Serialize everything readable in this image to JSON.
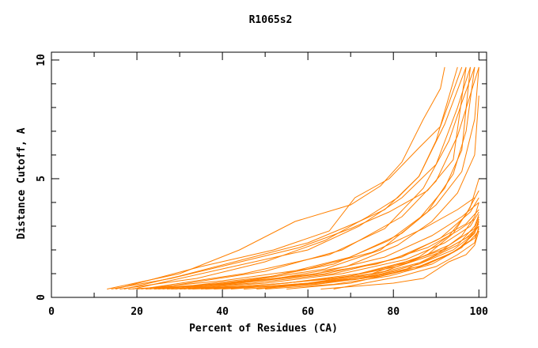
{
  "chart_data": {
    "type": "line",
    "title": "R1065s2",
    "xlabel": "Percent of Residues (CA)",
    "ylabel": "Distance Cutoff, A",
    "xlim": [
      0,
      101.8
    ],
    "ylim": [
      0,
      10.33
    ],
    "x_ticks": [
      0,
      20,
      40,
      60,
      80,
      100
    ],
    "y_ticks": [
      0,
      5,
      10
    ],
    "grid": false,
    "legend": "none",
    "line_color": "#ff8000",
    "series": [
      {
        "points": [
          [
            13,
            0.35
          ],
          [
            30,
            1.0
          ],
          [
            44,
            2.0
          ],
          [
            57,
            3.2
          ],
          [
            70,
            3.9
          ],
          [
            77,
            4.7
          ],
          [
            82,
            5.7
          ],
          [
            87,
            7.5
          ],
          [
            91,
            8.8
          ],
          [
            92,
            9.7
          ]
        ]
      },
      {
        "points": [
          [
            15,
            0.35
          ],
          [
            35,
            1.3
          ],
          [
            52,
            2.0
          ],
          [
            65,
            2.8
          ],
          [
            71,
            4.2
          ],
          [
            79,
            5.0
          ],
          [
            86,
            6.3
          ],
          [
            91,
            7.2
          ],
          [
            96,
            9.7
          ]
        ]
      },
      {
        "points": [
          [
            17,
            0.35
          ],
          [
            30,
            0.9
          ],
          [
            45,
            1.6
          ],
          [
            60,
            2.3
          ],
          [
            72,
            3.2
          ],
          [
            78,
            3.7
          ],
          [
            86,
            5.1
          ],
          [
            92,
            7.3
          ],
          [
            97,
            9.7
          ]
        ]
      },
      {
        "points": [
          [
            19,
            0.35
          ],
          [
            40,
            1.2
          ],
          [
            60,
            2.0
          ],
          [
            72,
            3.0
          ],
          [
            82,
            4.2
          ],
          [
            90,
            5.6
          ],
          [
            95,
            8.0
          ],
          [
            98,
            9.7
          ]
        ]
      },
      {
        "points": [
          [
            21,
            0.35
          ],
          [
            45,
            1.0
          ],
          [
            65,
            1.8
          ],
          [
            78,
            2.9
          ],
          [
            87,
            4.6
          ],
          [
            93,
            6.6
          ],
          [
            96,
            8.2
          ],
          [
            99,
            9.7
          ]
        ]
      },
      {
        "points": [
          [
            23,
            0.35
          ],
          [
            50,
            1.1
          ],
          [
            68,
            2.0
          ],
          [
            82,
            3.4
          ],
          [
            90,
            4.9
          ],
          [
            95,
            6.8
          ],
          [
            100,
            9.7
          ]
        ]
      },
      {
        "points": [
          [
            14,
            0.35
          ],
          [
            28,
            0.8
          ],
          [
            42,
            1.4
          ],
          [
            58,
            2.1
          ],
          [
            70,
            2.9
          ],
          [
            79,
            3.6
          ],
          [
            88,
            4.5
          ],
          [
            94,
            5.8
          ],
          [
            97,
            9.7
          ]
        ]
      },
      {
        "points": [
          [
            26,
            0.35
          ],
          [
            52,
            0.9
          ],
          [
            70,
            1.7
          ],
          [
            82,
            2.7
          ],
          [
            90,
            3.9
          ],
          [
            96,
            5.3
          ],
          [
            99,
            7.5
          ],
          [
            100,
            9.7
          ]
        ]
      },
      {
        "points": [
          [
            20,
            0.35
          ],
          [
            40,
            0.7
          ],
          [
            60,
            1.2
          ],
          [
            75,
            1.9
          ],
          [
            87,
            2.9
          ],
          [
            95,
            3.7
          ],
          [
            99,
            4.2
          ]
        ]
      },
      {
        "points": [
          [
            22,
            0.35
          ],
          [
            42,
            0.6
          ],
          [
            62,
            1.0
          ],
          [
            78,
            1.7
          ],
          [
            89,
            2.6
          ],
          [
            96,
            3.4
          ],
          [
            100,
            4.0
          ]
        ]
      },
      {
        "points": [
          [
            24,
            0.35
          ],
          [
            44,
            0.6
          ],
          [
            64,
            1.0
          ],
          [
            80,
            1.6
          ],
          [
            90,
            2.4
          ],
          [
            97,
            3.1
          ],
          [
            100,
            3.7
          ]
        ]
      },
      {
        "points": [
          [
            27,
            0.35
          ],
          [
            47,
            0.6
          ],
          [
            66,
            1.0
          ],
          [
            82,
            1.7
          ],
          [
            91,
            2.5
          ],
          [
            98,
            3.6
          ],
          [
            100,
            4.2
          ]
        ]
      },
      {
        "points": [
          [
            30,
            0.35
          ],
          [
            50,
            0.6
          ],
          [
            68,
            1.0
          ],
          [
            83,
            1.6
          ],
          [
            92,
            2.3
          ],
          [
            98,
            3.0
          ],
          [
            100,
            3.6
          ]
        ]
      },
      {
        "points": [
          [
            18,
            0.35
          ],
          [
            38,
            0.55
          ],
          [
            58,
            0.9
          ],
          [
            76,
            1.4
          ],
          [
            88,
            2.1
          ],
          [
            95,
            2.8
          ],
          [
            99,
            3.3
          ]
        ]
      },
      {
        "points": [
          [
            32,
            0.35
          ],
          [
            52,
            0.55
          ],
          [
            70,
            0.9
          ],
          [
            84,
            1.5
          ],
          [
            93,
            2.2
          ],
          [
            99,
            2.9
          ],
          [
            100,
            3.4
          ]
        ]
      },
      {
        "points": [
          [
            35,
            0.35
          ],
          [
            55,
            0.6
          ],
          [
            72,
            1.0
          ],
          [
            85,
            1.6
          ],
          [
            93,
            2.1
          ],
          [
            98,
            2.6
          ],
          [
            100,
            3.1
          ]
        ]
      },
      {
        "points": [
          [
            28,
            0.35
          ],
          [
            48,
            0.5
          ],
          [
            67,
            0.8
          ],
          [
            81,
            1.3
          ],
          [
            91,
            1.9
          ],
          [
            97,
            2.5
          ],
          [
            100,
            3.0
          ]
        ]
      },
      {
        "points": [
          [
            38,
            0.35
          ],
          [
            56,
            0.5
          ],
          [
            73,
            0.8
          ],
          [
            86,
            1.4
          ],
          [
            94,
            2.0
          ],
          [
            99,
            2.7
          ],
          [
            100,
            3.2
          ]
        ]
      },
      {
        "points": [
          [
            40,
            0.35
          ],
          [
            58,
            0.55
          ],
          [
            74,
            0.9
          ],
          [
            87,
            1.5
          ],
          [
            95,
            2.2
          ],
          [
            99,
            3.0
          ],
          [
            100,
            3.5
          ]
        ]
      },
      {
        "points": [
          [
            33,
            0.35
          ],
          [
            53,
            0.5
          ],
          [
            71,
            0.75
          ],
          [
            85,
            1.2
          ],
          [
            93,
            1.8
          ],
          [
            98,
            2.4
          ],
          [
            100,
            2.8
          ]
        ]
      },
      {
        "points": [
          [
            45,
            0.35
          ],
          [
            62,
            0.55
          ],
          [
            77,
            0.9
          ],
          [
            88,
            1.4
          ],
          [
            95,
            2.0
          ],
          [
            99,
            2.7
          ],
          [
            100,
            3.3
          ]
        ]
      },
      {
        "points": [
          [
            50,
            0.35
          ],
          [
            66,
            0.55
          ],
          [
            79,
            0.9
          ],
          [
            89,
            1.4
          ],
          [
            96,
            2.1
          ],
          [
            100,
            3.0
          ]
        ]
      },
      {
        "points": [
          [
            36,
            0.35
          ],
          [
            54,
            0.5
          ],
          [
            72,
            0.8
          ],
          [
            86,
            1.3
          ],
          [
            94,
            1.9
          ],
          [
            99,
            2.5
          ],
          [
            100,
            2.9
          ]
        ]
      },
      {
        "points": [
          [
            63,
            0.35
          ],
          [
            80,
            0.6
          ],
          [
            87,
            0.8
          ],
          [
            93,
            1.5
          ],
          [
            97,
            1.8
          ],
          [
            99,
            2.2
          ],
          [
            100,
            2.8
          ]
        ]
      },
      {
        "points": [
          [
            66,
            0.35
          ],
          [
            82,
            0.9
          ],
          [
            90,
            1.3
          ],
          [
            95,
            1.8
          ],
          [
            99,
            2.3
          ],
          [
            100,
            3.0
          ]
        ]
      },
      {
        "points": [
          [
            25,
            0.35
          ],
          [
            46,
            0.7
          ],
          [
            64,
            1.2
          ],
          [
            77,
            2.0
          ],
          [
            86,
            3.3
          ],
          [
            92,
            4.6
          ],
          [
            96,
            6.2
          ],
          [
            98,
            9.7
          ]
        ]
      },
      {
        "points": [
          [
            29,
            0.35
          ],
          [
            49,
            0.8
          ],
          [
            66,
            1.4
          ],
          [
            79,
            2.4
          ],
          [
            88,
            3.6
          ],
          [
            94,
            5.2
          ],
          [
            97,
            7.0
          ],
          [
            99,
            9.7
          ]
        ]
      },
      {
        "points": [
          [
            31,
            0.35
          ],
          [
            51,
            0.75
          ],
          [
            69,
            1.3
          ],
          [
            81,
            2.2
          ],
          [
            89,
            3.2
          ],
          [
            95,
            4.4
          ],
          [
            99,
            6.0
          ],
          [
            100,
            8.5
          ]
        ]
      },
      {
        "points": [
          [
            16,
            0.35
          ],
          [
            34,
            0.8
          ],
          [
            50,
            1.5
          ],
          [
            64,
            2.4
          ],
          [
            74,
            3.4
          ],
          [
            81,
            4.2
          ],
          [
            86,
            5.1
          ],
          [
            90,
            6.6
          ],
          [
            95,
            9.7
          ]
        ]
      },
      {
        "points": [
          [
            42,
            0.35
          ],
          [
            60,
            0.6
          ],
          [
            75,
            1.0
          ],
          [
            86,
            1.7
          ],
          [
            93,
            2.6
          ],
          [
            97,
            3.5
          ],
          [
            100,
            4.5
          ]
        ]
      },
      {
        "points": [
          [
            48,
            0.35
          ],
          [
            64,
            0.6
          ],
          [
            78,
            1.1
          ],
          [
            88,
            1.8
          ],
          [
            94,
            2.7
          ],
          [
            98,
            3.8
          ],
          [
            100,
            5.0
          ]
        ]
      },
      {
        "points": [
          [
            55,
            0.35
          ],
          [
            70,
            0.6
          ],
          [
            82,
            1.1
          ],
          [
            90,
            1.8
          ],
          [
            96,
            2.6
          ],
          [
            99,
            3.4
          ],
          [
            100,
            4.0
          ]
        ]
      }
    ]
  }
}
